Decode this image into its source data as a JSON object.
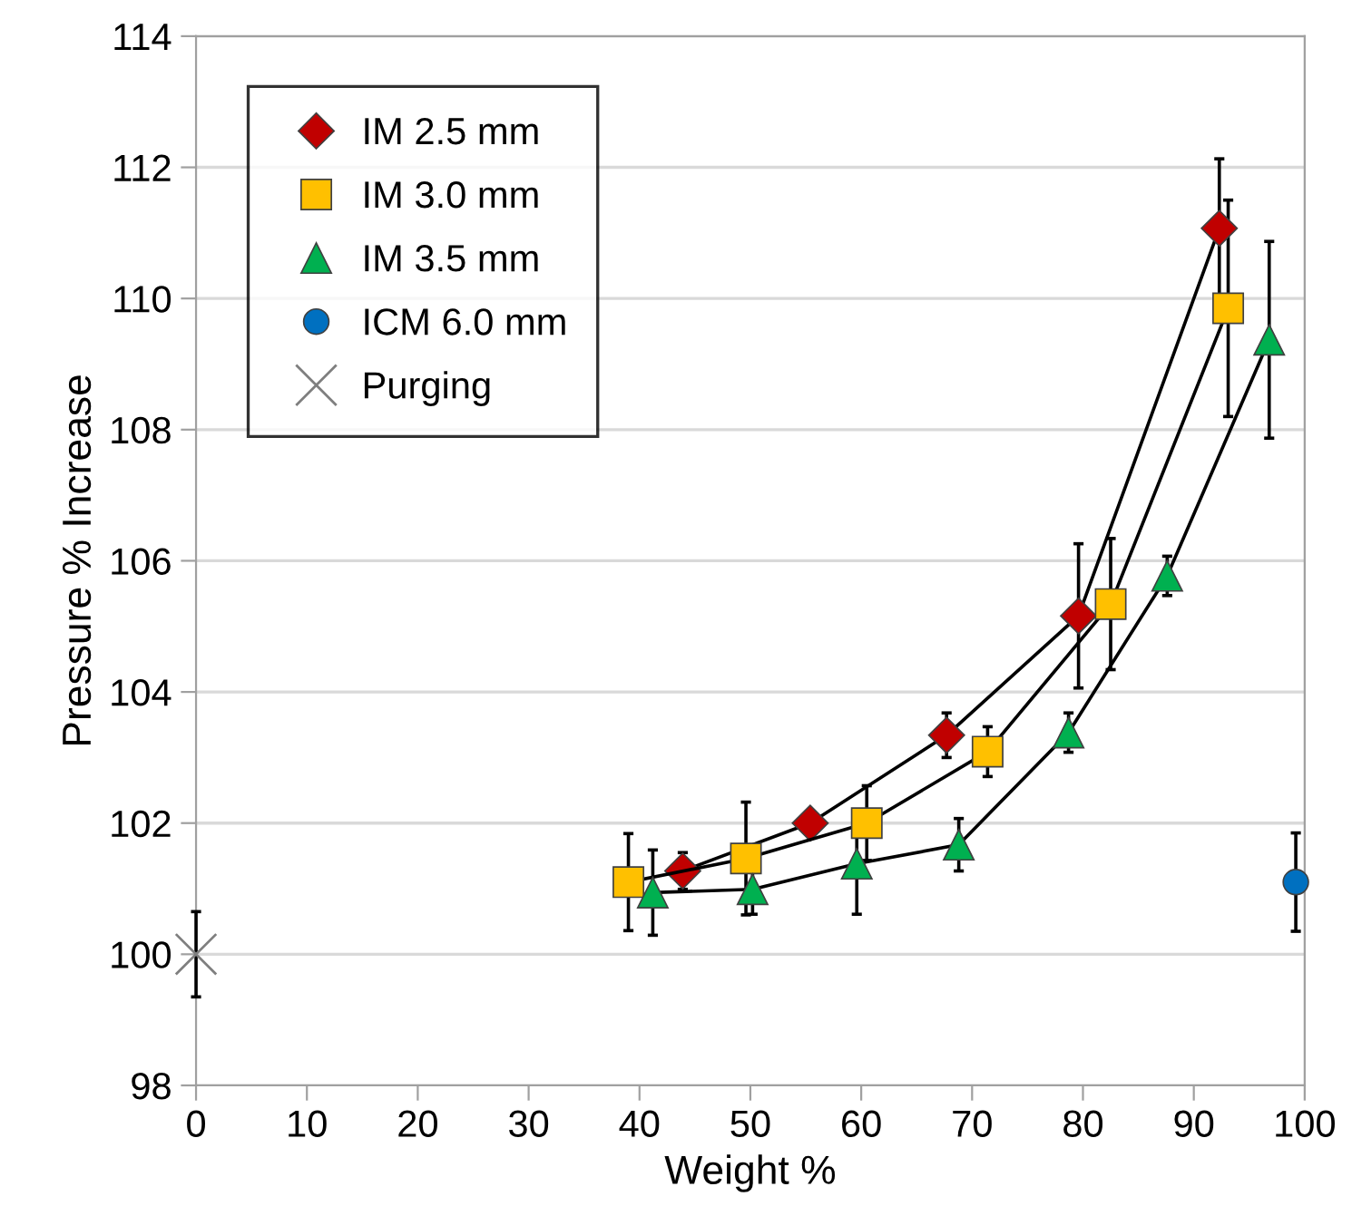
{
  "chart_data": {
    "type": "line",
    "xlabel": "Weight %",
    "ylabel": "Pressure % Increase",
    "xlim": [
      0,
      100
    ],
    "ylim": [
      98,
      114
    ],
    "xticks": [
      0,
      10,
      20,
      30,
      40,
      50,
      60,
      70,
      80,
      90,
      100
    ],
    "yticks": [
      98,
      100,
      102,
      104,
      106,
      108,
      110,
      112,
      114
    ],
    "grid": "y",
    "legend": "top left",
    "series": [
      {
        "name": "IM 2.5 mm",
        "color": "#c00000",
        "marker": "diamond",
        "line_style": "solid",
        "x": [
          43.9,
          55.4,
          67.7,
          79.6,
          92.3
        ],
        "values": [
          101.27,
          102.0,
          103.34,
          105.16,
          111.07
        ],
        "errors": [
          0.28,
          null,
          0.34,
          1.1,
          1.06
        ]
      },
      {
        "name": "IM 3.0 mm",
        "color": "#ffc000",
        "marker": "square",
        "line_style": "solid",
        "x": [
          39.0,
          49.6,
          60.5,
          71.4,
          82.5,
          93.1
        ],
        "values": [
          101.1,
          101.46,
          102.0,
          103.09,
          105.34,
          109.85
        ],
        "errors": [
          0.74,
          0.86,
          0.57,
          0.38,
          1.0,
          1.65
        ]
      },
      {
        "name": "IM 3.5 mm",
        "color": "#00b050",
        "marker": "triangle",
        "line_style": "solid",
        "x": [
          41.2,
          50.2,
          59.6,
          68.8,
          78.7,
          87.6,
          96.8
        ],
        "values": [
          100.94,
          100.99,
          101.38,
          101.67,
          103.38,
          105.77,
          109.37
        ],
        "errors": [
          0.65,
          0.38,
          0.77,
          0.4,
          0.3,
          0.3,
          1.5
        ]
      },
      {
        "name": "ICM 6.0 mm",
        "color": "#0070c0",
        "marker": "circle",
        "type": "scatter",
        "x": [
          99.2
        ],
        "values": [
          101.1
        ],
        "errors": [
          0.75
        ]
      },
      {
        "name": "Purging",
        "color": "#7f7f7f",
        "marker": "cross",
        "type": "scatter",
        "x": [
          0
        ],
        "values": [
          100.0
        ],
        "errors": [
          0.65
        ]
      }
    ]
  }
}
